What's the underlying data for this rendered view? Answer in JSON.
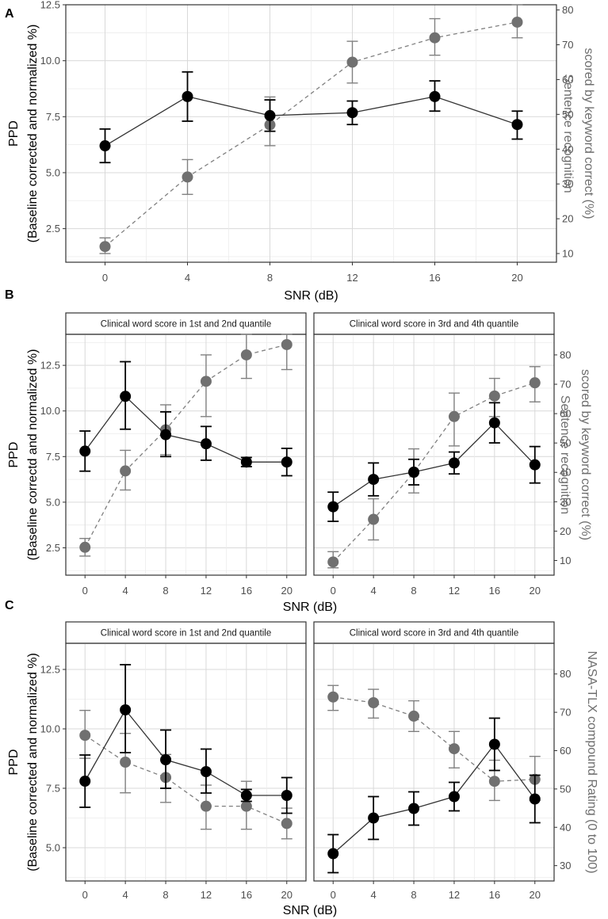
{
  "chart_data": [
    {
      "panel": "A",
      "type": "line",
      "xlabel": "SNR (dB)",
      "x": [
        0,
        4,
        8,
        12,
        16,
        20
      ],
      "x_ticks": [
        "0",
        "4",
        "8",
        "12",
        "16",
        "20"
      ],
      "ylabel_left": [
        "PPD",
        "(Baseline corrected and normalized %)"
      ],
      "ylabel_right": [
        "Sentence recognition",
        "scored by keyword correct (%)"
      ],
      "ylim_left": [
        1.0,
        12.5
      ],
      "ylim_right": [
        7.5,
        81.5
      ],
      "y_ticks_left": [
        "2.5",
        "5.0",
        "7.5",
        "10.0",
        "12.5"
      ],
      "y_ticks_right": [
        "10",
        "20",
        "30",
        "40",
        "50",
        "60",
        "70",
        "80"
      ],
      "grid": true,
      "facets": [
        {
          "title": "",
          "series": [
            {
              "axis": "left",
              "color": "#000000",
              "style": "solid",
              "values": [
                6.2,
                8.4,
                7.55,
                7.68,
                8.4,
                7.15
              ],
              "err_low": [
                5.45,
                7.3,
                6.85,
                7.15,
                7.75,
                6.5
              ],
              "err_high": [
                6.95,
                9.5,
                8.25,
                8.2,
                9.1,
                7.75
              ]
            },
            {
              "axis": "right",
              "color": "#707070",
              "style": "dashed",
              "values": [
                12,
                32,
                47,
                65,
                72,
                76.5
              ],
              "err_low": [
                10,
                27,
                41,
                59,
                67,
                72
              ],
              "err_high": [
                14.5,
                37,
                55,
                71,
                77.5,
                81.5
              ]
            }
          ]
        }
      ]
    },
    {
      "panel": "B",
      "type": "line",
      "xlabel": "SNR (dB)",
      "x": [
        0,
        4,
        8,
        12,
        16,
        20
      ],
      "x_ticks": [
        "0",
        "4",
        "8",
        "12",
        "16",
        "20"
      ],
      "ylabel_left": [
        "PPD",
        "(Baseline correctd and normalized %)"
      ],
      "ylabel_right": [
        "Sentence recognition",
        "scored by keyword correct (%)"
      ],
      "ylim_left": [
        1.0,
        14.2
      ],
      "ylim_right": [
        5,
        87
      ],
      "y_ticks_left": [
        "2.5",
        "5.0",
        "7.5",
        "10.0",
        "12.5"
      ],
      "y_ticks_right": [
        "10",
        "20",
        "30",
        "40",
        "50",
        "60",
        "70",
        "80"
      ],
      "grid": true,
      "facets": [
        {
          "title": "Clinical word score in 1st and 2nd quantile",
          "series": [
            {
              "axis": "left",
              "color": "#000000",
              "style": "solid",
              "values": [
                7.8,
                10.8,
                8.7,
                8.2,
                7.2,
                7.2
              ],
              "err_low": [
                6.7,
                9.0,
                7.5,
                7.3,
                6.95,
                6.45
              ],
              "err_high": [
                8.9,
                12.7,
                9.95,
                9.15,
                7.45,
                7.95
              ]
            },
            {
              "axis": "right",
              "color": "#707070",
              "style": "dashed",
              "values": [
                14.5,
                40.5,
                54.5,
                71,
                80,
                83.5
              ],
              "err_low": [
                11.5,
                34,
                46,
                59,
                72,
                75
              ],
              "err_high": [
                17.5,
                47.5,
                63,
                80,
                88,
                91
              ]
            }
          ]
        },
        {
          "title": "Clinical word score in 3rd and 4th quantile",
          "series": [
            {
              "axis": "left",
              "color": "#000000",
              "style": "solid",
              "values": [
                4.75,
                6.25,
                6.65,
                7.15,
                9.35,
                7.05
              ],
              "err_low": [
                3.95,
                5.35,
                5.95,
                6.55,
                8.25,
                6.05
              ],
              "err_high": [
                5.55,
                7.15,
                7.35,
                7.75,
                10.45,
                8.05
              ]
            },
            {
              "axis": "right",
              "color": "#707070",
              "style": "dashed",
              "values": [
                9.5,
                24,
                40,
                59,
                66,
                70.5
              ],
              "err_low": [
                7.5,
                17,
                33,
                49,
                59,
                64
              ],
              "err_high": [
                13,
                31,
                48,
                67,
                72,
                76
              ]
            }
          ]
        }
      ]
    },
    {
      "panel": "C",
      "type": "line",
      "xlabel": "SNR (dB)",
      "x": [
        0,
        4,
        8,
        12,
        16,
        20
      ],
      "x_ticks": [
        "0",
        "4",
        "8",
        "12",
        "16",
        "20"
      ],
      "ylabel_left": [
        "PPD",
        "(Baseline corrected and normalized %)"
      ],
      "ylabel_right": [
        "NASA-TLX compound Rating (0 to 100)"
      ],
      "ylim_left": [
        3.6,
        13.6
      ],
      "ylim_right": [
        26,
        88
      ],
      "y_ticks_left": [
        "5.0",
        "7.5",
        "10.0",
        "12.5"
      ],
      "y_ticks_right": [
        "30",
        "40",
        "50",
        "60",
        "70",
        "80"
      ],
      "grid": true,
      "facets": [
        {
          "title": "Clinical word score in 1st and 2nd quantile",
          "series": [
            {
              "axis": "left",
              "color": "#000000",
              "style": "solid",
              "values": [
                7.8,
                10.8,
                8.7,
                8.2,
                7.2,
                7.2
              ],
              "err_low": [
                6.7,
                9.0,
                7.5,
                7.3,
                6.95,
                6.45
              ],
              "err_high": [
                8.9,
                12.7,
                9.95,
                9.15,
                7.45,
                7.95
              ]
            },
            {
              "axis": "right",
              "color": "#707070",
              "style": "dashed",
              "values": [
                64,
                57,
                53,
                45.5,
                45.5,
                41
              ],
              "err_low": [
                58,
                49,
                46.5,
                39.5,
                39.5,
                37
              ],
              "err_high": [
                70.5,
                64.5,
                59,
                51,
                52,
                45
              ]
            }
          ]
        },
        {
          "title": "Clinical word score in 3rd and 4th quantile",
          "series": [
            {
              "axis": "left",
              "color": "#000000",
              "style": "solid",
              "values": [
                4.75,
                6.25,
                6.65,
                7.15,
                9.35,
                7.05
              ],
              "err_low": [
                3.95,
                5.35,
                5.95,
                6.55,
                8.25,
                6.05
              ],
              "err_high": [
                5.55,
                7.15,
                7.35,
                7.75,
                10.45,
                8.05
              ]
            },
            {
              "axis": "right",
              "color": "#707070",
              "style": "dashed",
              "values": [
                74,
                72.5,
                69,
                60.5,
                52,
                52.5
              ],
              "err_low": [
                70.5,
                68.5,
                65,
                55.5,
                47,
                47
              ],
              "err_high": [
                77,
                76,
                73,
                65,
                57.5,
                58.5
              ]
            }
          ]
        }
      ]
    }
  ]
}
